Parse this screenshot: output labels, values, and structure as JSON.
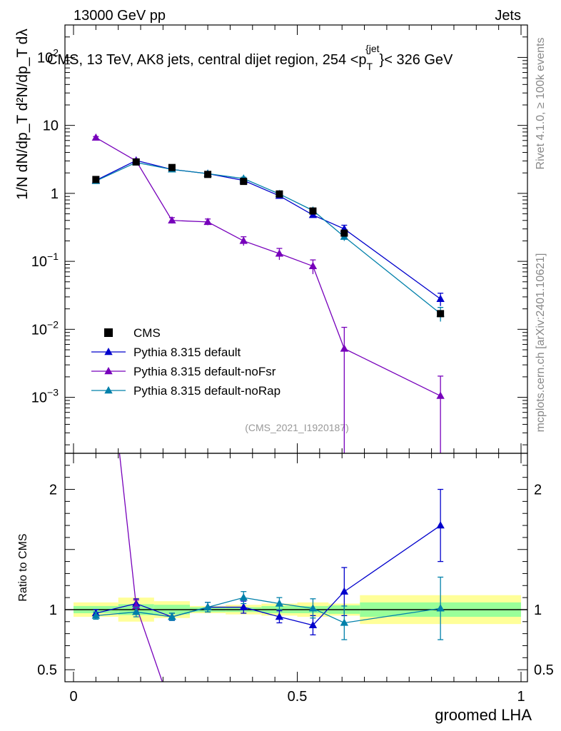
{
  "header": {
    "left": "13000 GeV pp",
    "right": "Jets"
  },
  "side_labels": {
    "rivet": "Rivet 4.1.0, ≥ 100k events",
    "mcplots": "mcplots.cern.ch [arXiv:2401.10621]"
  },
  "watermark": "(CMS_2021_I1920187)",
  "chart_data": {
    "type": "scatter",
    "title": "CMS, 13 TeV, AK8 jets, central dijet region, 254 < p_T^{jet} < 326 GeV",
    "title_parts": {
      "main": "CMS, 13 TeV, AK8 jets, central dijet region, 254 <p",
      "sub": "T",
      "sup": "{jet",
      "tail": "}< 326 GeV"
    },
    "xlabel": "groomed LHA",
    "ylabel_main": "1/N dN/dp_T d²N/dp_T dλ",
    "ylabel_ratio": "Ratio to CMS",
    "xlim": [
      0,
      1
    ],
    "ylim_main": [
      0.00015,
      300
    ],
    "ylim_ratio": [
      0.4,
      2.3
    ],
    "x_ticks": [
      {
        "v": 0,
        "label": "0"
      },
      {
        "v": 0.5,
        "label": "0.5"
      },
      {
        "v": 1,
        "label": "1"
      }
    ],
    "y_ticks_main": [
      {
        "v": 0.001,
        "base": "10",
        "exp": "−3"
      },
      {
        "v": 0.01,
        "base": "10",
        "exp": "−2"
      },
      {
        "v": 0.1,
        "base": "10",
        "exp": "−1"
      },
      {
        "v": 1,
        "base": "1",
        "exp": ""
      },
      {
        "v": 10,
        "base": "10",
        "exp": ""
      },
      {
        "v": 100,
        "base": "10",
        "exp": "2"
      }
    ],
    "y_ticks_ratio": [
      {
        "v": 0.5,
        "label": "0.5"
      },
      {
        "v": 1,
        "label": "1"
      },
      {
        "v": 2,
        "label": "2"
      }
    ],
    "bins": [
      {
        "lo": 0.0,
        "hi": 0.1,
        "x": 0.05
      },
      {
        "lo": 0.1,
        "hi": 0.18,
        "x": 0.14
      },
      {
        "lo": 0.18,
        "hi": 0.26,
        "x": 0.22
      },
      {
        "lo": 0.26,
        "hi": 0.34,
        "x": 0.3
      },
      {
        "lo": 0.34,
        "hi": 0.42,
        "x": 0.38
      },
      {
        "lo": 0.42,
        "hi": 0.5,
        "x": 0.46
      },
      {
        "lo": 0.5,
        "hi": 0.57,
        "x": 0.535
      },
      {
        "lo": 0.57,
        "hi": 0.64,
        "x": 0.605
      },
      {
        "lo": 0.64,
        "hi": 1.0,
        "x": 0.82
      }
    ],
    "data": {
      "name": "CMS",
      "values": [
        1.6,
        2.9,
        2.4,
        1.9,
        1.5,
        0.98,
        0.55,
        0.26,
        0.017
      ],
      "band_inner": [
        0.03,
        0.045,
        0.04,
        0.02,
        0.02,
        0.03,
        0.03,
        0.035,
        0.06
      ],
      "band_outer": [
        0.06,
        0.1,
        0.07,
        0.03,
        0.04,
        0.05,
        0.06,
        0.05,
        0.12
      ]
    },
    "series": [
      {
        "name": "Pythia 8.315 default",
        "color": "#0000cc",
        "values": [
          1.55,
          3.05,
          2.25,
          1.95,
          1.55,
          0.92,
          0.48,
          0.3,
          0.028
        ],
        "errors": [
          0.08,
          0.12,
          0.1,
          0.08,
          0.08,
          0.06,
          0.04,
          0.04,
          0.006
        ],
        "ratio": [
          0.97,
          1.05,
          0.94,
          1.02,
          1.02,
          0.94,
          0.87,
          1.15,
          1.7
        ],
        "ratio_err": [
          0.03,
          0.04,
          0.03,
          0.04,
          0.05,
          0.05,
          0.08,
          0.2,
          0.3
        ]
      },
      {
        "name": "Pythia 8.315 default-noFsr",
        "color": "#7700bb",
        "values": [
          6.6,
          3.0,
          0.4,
          0.38,
          0.2,
          0.13,
          0.085,
          0.0052,
          0.00105
        ],
        "errors": [
          0.25,
          0.15,
          0.04,
          0.04,
          0.03,
          0.025,
          0.02,
          0.0055,
          0.001
        ],
        "ratio": [
          4.1,
          1.03,
          0.166,
          0.2,
          0.133,
          0.133,
          0.155,
          0.02,
          0.062
        ],
        "ratio_err": [
          0.2,
          0.05,
          0.02,
          0.02,
          0.02,
          0.02,
          0.03,
          0.02,
          0.05
        ]
      },
      {
        "name": "Pythia 8.315 default-noRap",
        "color": "#0080aa",
        "values": [
          1.52,
          2.85,
          2.25,
          1.95,
          1.65,
          0.98,
          0.56,
          0.23,
          0.017
        ],
        "errors": [
          0.08,
          0.12,
          0.1,
          0.08,
          0.08,
          0.06,
          0.04,
          0.03,
          0.004
        ],
        "ratio": [
          0.95,
          0.98,
          0.94,
          1.02,
          1.1,
          1.05,
          1.01,
          0.89,
          1.01
        ],
        "ratio_err": [
          0.03,
          0.04,
          0.03,
          0.04,
          0.05,
          0.05,
          0.08,
          0.14,
          0.26
        ]
      }
    ]
  }
}
